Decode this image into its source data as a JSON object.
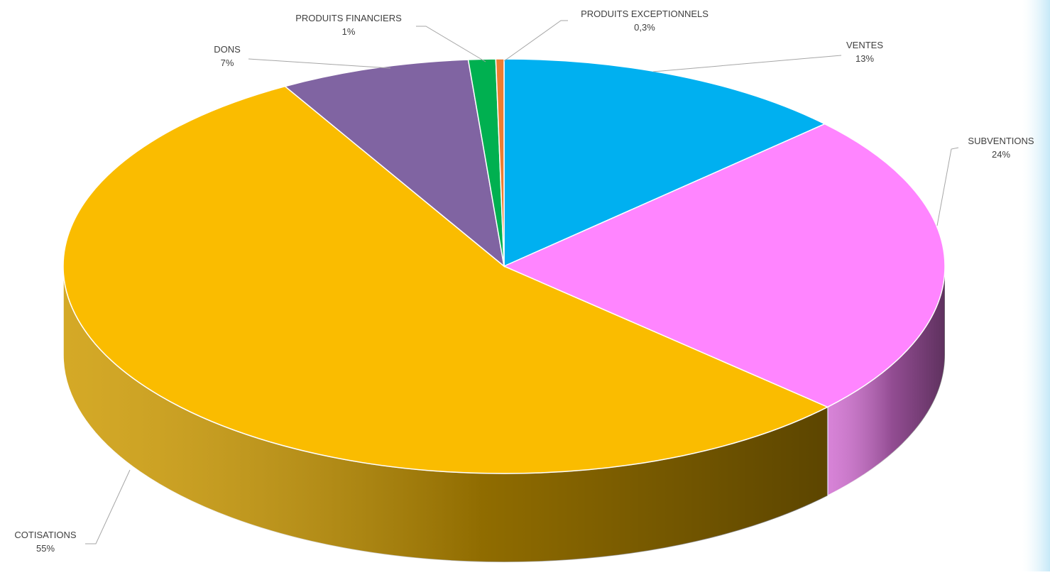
{
  "chart_data": {
    "type": "pie",
    "style": "3d",
    "title": "",
    "slices": [
      {
        "name": "VENTES",
        "value": 13,
        "label": "13%",
        "color": "#00B0F0"
      },
      {
        "name": "SUBVENTIONS",
        "value": 24,
        "label": "24%",
        "color": "#FF85FF"
      },
      {
        "name": "COTISATIONS",
        "value": 55,
        "label": "55%",
        "color": "#FABC00"
      },
      {
        "name": "DONS",
        "value": 7,
        "label": "7%",
        "color": "#8064A2"
      },
      {
        "name": "PRODUITS FINANCIERS",
        "value": 1,
        "label": "1%",
        "color": "#00B050"
      },
      {
        "name": "PRODUITS EXCEPTIONNELS",
        "value": 0.3,
        "label": "0,3%",
        "color": "#ED7D31"
      }
    ],
    "legend": "none"
  }
}
